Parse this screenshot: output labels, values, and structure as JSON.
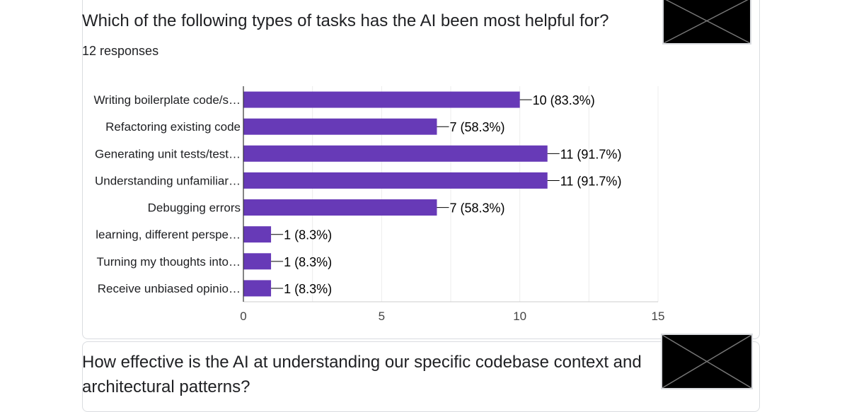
{
  "question1": {
    "title": "Which of the following types of tasks has the AI been most helpful for?",
    "responses": "12 responses"
  },
  "question2": {
    "title": "How effective is the AI at understanding our specific codebase context and architectural patterns?"
  },
  "thumbnail_icon": "broken-image-icon",
  "chart_data": {
    "type": "bar",
    "orientation": "horizontal",
    "categories": [
      "Writing boilerplate code/s…",
      "Refactoring existing code",
      "Generating unit tests/test…",
      "Understanding unfamiliar…",
      "Debugging errors",
      "learning, different perspe…",
      "Turning my thoughts into…",
      "Receive unbiased opinio…"
    ],
    "values": [
      10,
      7,
      11,
      11,
      7,
      1,
      1,
      1
    ],
    "data_labels": [
      "10 (83.3%)",
      "7 (58.3%)",
      "11 (91.7%)",
      "11 (91.7%)",
      "7 (58.3%)",
      "1 (8.3%)",
      "1 (8.3%)",
      "1 (8.3%)"
    ],
    "xlim": [
      0,
      15
    ],
    "xticks": [
      0,
      5,
      10,
      15
    ],
    "bar_color": "#673ab7",
    "grid": true
  }
}
